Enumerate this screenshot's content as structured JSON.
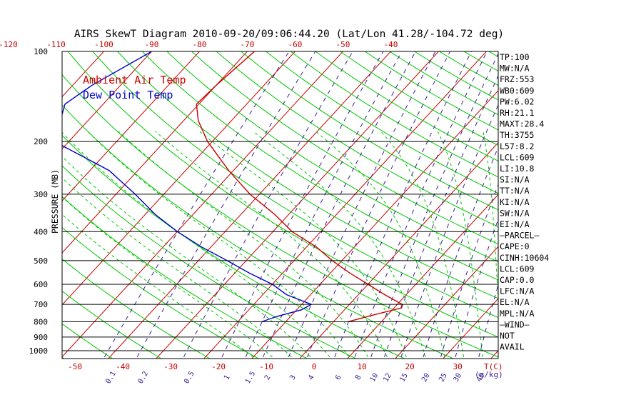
{
  "chart_data": {
    "type": "line",
    "title": "AIRS SkewT Diagram 2010-09-20/09:06:44.20 (Lat/Lon 41.28/-104.72 deg)",
    "ylabel": "PRESSURE (MB)",
    "x_unit_label": "T(C)",
    "mixing_ratio_unit_label": "(g/kg)",
    "y_scale": "log",
    "ylim": [
      1050,
      100
    ],
    "pressure_levels": [
      100,
      200,
      300,
      400,
      500,
      600,
      700,
      800,
      900,
      1000
    ],
    "pressure_tick_labels": [
      "100",
      "200",
      "300",
      "400",
      "500",
      "600",
      "700",
      "800",
      "900",
      "1000"
    ],
    "top_temperature_ticks": [
      -120,
      -110,
      -100,
      -90,
      -80,
      -70,
      -60,
      -50,
      -40
    ],
    "top_temperature_tick_labels": [
      "-120",
      "-110",
      "-100",
      "-90",
      "-80",
      "-70",
      "-60",
      "-50",
      "-40"
    ],
    "bottom_temperature_ticks": [
      -50,
      -40,
      -30,
      -20,
      -10,
      0,
      10,
      20,
      30
    ],
    "bottom_temperature_tick_labels": [
      "-50",
      "-40",
      "-30",
      "-20",
      "-10",
      "0",
      "10",
      "20",
      "30"
    ],
    "mixing_ratio_labels": [
      "0.1",
      "0.2",
      "0.5",
      "1",
      "1.5",
      "2",
      "3",
      "4",
      "6",
      "8",
      "10",
      "12",
      "15",
      "20",
      "25",
      "30",
      "40"
    ],
    "series": [
      {
        "name": "Ambient Air Temp",
        "color": "#cc0000",
        "points": [
          {
            "p": 100,
            "t": -68.5
          },
          {
            "p": 130,
            "t": -70
          },
          {
            "p": 150,
            "t": -70.5
          },
          {
            "p": 170,
            "t": -67
          },
          {
            "p": 200,
            "t": -61
          },
          {
            "p": 250,
            "t": -51
          },
          {
            "p": 300,
            "t": -42
          },
          {
            "p": 350,
            "t": -33
          },
          {
            "p": 400,
            "t": -26
          },
          {
            "p": 450,
            "t": -18
          },
          {
            "p": 500,
            "t": -12
          },
          {
            "p": 550,
            "t": -6
          },
          {
            "p": 600,
            "t": 0
          },
          {
            "p": 650,
            "t": 5.5
          },
          {
            "p": 700,
            "t": 11
          },
          {
            "p": 720,
            "t": 11.5
          },
          {
            "p": 760,
            "t": 7
          },
          {
            "p": 800,
            "t": 3
          }
        ]
      },
      {
        "name": "Dew Point Temp",
        "color": "#0000cc",
        "points": [
          {
            "p": 100,
            "t": -90
          },
          {
            "p": 130,
            "t": -96
          },
          {
            "p": 150,
            "t": -98
          },
          {
            "p": 200,
            "t": -93
          },
          {
            "p": 250,
            "t": -76
          },
          {
            "p": 300,
            "t": -66
          },
          {
            "p": 350,
            "t": -58
          },
          {
            "p": 400,
            "t": -50
          },
          {
            "p": 450,
            "t": -42
          },
          {
            "p": 500,
            "t": -34
          },
          {
            "p": 550,
            "t": -27
          },
          {
            "p": 600,
            "t": -20
          },
          {
            "p": 650,
            "t": -15
          },
          {
            "p": 700,
            "t": -8
          },
          {
            "p": 730,
            "t": -9
          },
          {
            "p": 770,
            "t": -13
          },
          {
            "p": 800,
            "t": -15
          }
        ]
      }
    ],
    "legend": {
      "placement": "top-left",
      "items": [
        {
          "label": "Ambient Air Temp",
          "color": "#cc0000"
        },
        {
          "label": "Dew Point Temp",
          "color": "#0000cc"
        }
      ]
    },
    "indices": [
      "TP:100",
      "MW:N/A",
      "FRZ:553",
      "WB0:609",
      "PW:6.02",
      "RH:21.1",
      "MAXT:28.4",
      "TH:3755",
      "L57:8.2",
      "LCL:609",
      "LI:10.8",
      "SI:N/A",
      "TT:N/A",
      "KI:N/A",
      "SW:N/A",
      "EI:N/A",
      "–PARCEL–",
      "CAPE:0",
      "CINH:10604",
      "LCL:609",
      "CAP:0.0",
      "LFC:N/A",
      "EL:N/A",
      "MPL:N/A",
      "–WIND–",
      "NOT",
      "AVAIL"
    ],
    "colors": {
      "isotherm": "#c80000",
      "dry_adiabat": "#00c800",
      "moist_adiabat": "#00c800",
      "mixing_ratio": "#3c1e96",
      "isobar": "#000000",
      "title": "#000000",
      "tick_label": "#c80000",
      "mixing_ratio_label": "#3c1e96",
      "index_text": "#000000"
    }
  }
}
